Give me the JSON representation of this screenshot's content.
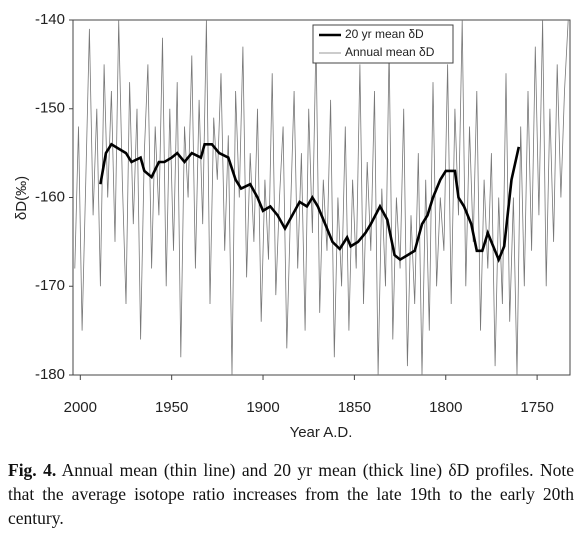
{
  "chart_data": {
    "type": "line",
    "ylabel": "δD(‰)",
    "xlabel": "Year A.D.",
    "xlim": [
      2004,
      1732
    ],
    "xticks": [
      2000,
      1950,
      1900,
      1850,
      1800,
      1750
    ],
    "ylim": [
      -180,
      -140
    ],
    "yticks": [
      -180,
      -170,
      -160,
      -150,
      -140
    ],
    "grid": false,
    "legend": "upper right",
    "series": [
      {
        "name": "20 yr mean δD",
        "color": "#000000",
        "x": [
          1989,
          1986,
          1983,
          1979,
          1975,
          1972,
          1967,
          1965,
          1961,
          1957,
          1954,
          1950,
          1947,
          1943,
          1939,
          1934,
          1932,
          1928,
          1924,
          1919,
          1915,
          1912,
          1907,
          1903,
          1900,
          1896,
          1892,
          1888,
          1884,
          1880,
          1876,
          1873,
          1870,
          1866,
          1862,
          1858,
          1854,
          1852,
          1848,
          1844,
          1841,
          1836,
          1832,
          1828,
          1825,
          1821,
          1817,
          1813,
          1810,
          1807,
          1803,
          1800,
          1795,
          1793,
          1790,
          1786,
          1783,
          1780,
          1777,
          1775,
          1771,
          1768,
          1764,
          1760
        ],
        "values": [
          -158.5,
          -155,
          -154,
          -154.5,
          -155,
          -156,
          -155.5,
          -157,
          -157.7,
          -156,
          -156,
          -155.5,
          -155,
          -156,
          -155,
          -155.5,
          -154,
          -154,
          -155,
          -155.5,
          -158,
          -159,
          -158.5,
          -160,
          -161.5,
          -161,
          -162,
          -163.5,
          -162,
          -160.5,
          -161,
          -160,
          -161,
          -163,
          -165,
          -165.8,
          -164.5,
          -165.5,
          -165,
          -164,
          -163,
          -161,
          -162.5,
          -166.5,
          -167,
          -166.5,
          -166,
          -163,
          -162,
          -160,
          -158,
          -157,
          -157,
          -160,
          -161,
          -163,
          -166,
          -166,
          -164,
          -165,
          -167,
          -165.5,
          -158,
          -154.3
        ]
      },
      {
        "name": "Annual mean δD",
        "color": "#777777",
        "x": [
          2003,
          2001,
          1999,
          1997,
          1995,
          1993,
          1991,
          1989,
          1987,
          1985,
          1983,
          1981,
          1979,
          1977,
          1975,
          1973,
          1971,
          1969,
          1967,
          1965,
          1963,
          1961,
          1959,
          1957,
          1955,
          1953,
          1951,
          1949,
          1947,
          1945,
          1943,
          1941,
          1939,
          1937,
          1935,
          1933,
          1931,
          1929,
          1927,
          1925,
          1923,
          1921,
          1919,
          1917,
          1915,
          1913,
          1911,
          1909,
          1907,
          1905,
          1903,
          1901,
          1899,
          1897,
          1895,
          1893,
          1891,
          1889,
          1887,
          1885,
          1883,
          1881,
          1879,
          1877,
          1875,
          1873,
          1871,
          1869,
          1867,
          1865,
          1863,
          1861,
          1859,
          1857,
          1855,
          1853,
          1851,
          1849,
          1847,
          1845,
          1843,
          1841,
          1839,
          1837,
          1835,
          1833,
          1831,
          1829,
          1827,
          1825,
          1823,
          1821,
          1819,
          1817,
          1815,
          1813,
          1811,
          1809,
          1807,
          1805,
          1803,
          1801,
          1799,
          1797,
          1795,
          1793,
          1791,
          1789,
          1787,
          1785,
          1783,
          1781,
          1779,
          1777,
          1775,
          1773,
          1771,
          1769,
          1767,
          1765,
          1763,
          1761,
          1759,
          1757,
          1755,
          1753,
          1751,
          1749,
          1747,
          1745,
          1743,
          1741,
          1739,
          1737,
          1735,
          1733
        ],
        "values": [
          -168,
          -152,
          -175,
          -158,
          -141,
          -162,
          -150,
          -170,
          -145,
          -160,
          -148,
          -165,
          -140,
          -158,
          -172,
          -147,
          -163,
          -150,
          -176,
          -155,
          -145,
          -168,
          -152,
          -162,
          -142,
          -170,
          -150,
          -166,
          -147,
          -178,
          -152,
          -160,
          -144,
          -168,
          -149,
          -163,
          -140,
          -172,
          -151,
          -158,
          -146,
          -166,
          -153,
          -180,
          -148,
          -160,
          -143,
          -169,
          -155,
          -165,
          -150,
          -174,
          -158,
          -167,
          -146,
          -171,
          -160,
          -152,
          -177,
          -162,
          -148,
          -168,
          -155,
          -175,
          -150,
          -164,
          -142,
          -173,
          -158,
          -166,
          -149,
          -178,
          -160,
          -170,
          -152,
          -175,
          -158,
          -168,
          -145,
          -172,
          -156,
          -166,
          -148,
          -180,
          -159,
          -170,
          -143,
          -176,
          -160,
          -168,
          -150,
          -179,
          -162,
          -172,
          -155,
          -180,
          -158,
          -175,
          -147,
          -170,
          -160,
          -166,
          -145,
          -172,
          -150,
          -162,
          -140,
          -170,
          -152,
          -165,
          -148,
          -175,
          -158,
          -168,
          -155,
          -179,
          -160,
          -172,
          -146,
          -174,
          -160,
          -180,
          -152,
          -170,
          -148,
          -166,
          -143,
          -162,
          -140,
          -170,
          -150,
          -165,
          -145,
          -160,
          -148,
          -140
        ]
      }
    ]
  },
  "caption": {
    "label": "Fig. 4.",
    "text": "Annual mean (thin line) and 20 yr mean (thick line) δD profiles. Note that the average isotope ratio increases from the late 19th to the early 20th century."
  }
}
